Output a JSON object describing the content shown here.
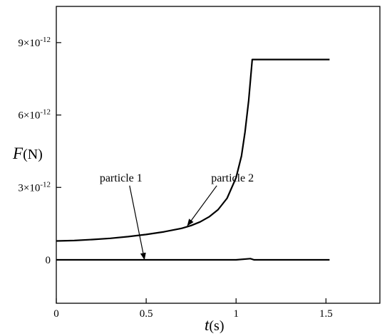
{
  "chart_data": {
    "type": "line",
    "title": "",
    "xlabel": {
      "var": "t",
      "unit": "(s)"
    },
    "ylabel": {
      "var": "F",
      "unit": "(N)"
    },
    "xlim": [
      0,
      1.8
    ],
    "ylim": [
      -1.8e-12,
      1.05e-11
    ],
    "x_ticks": [
      {
        "value": 0,
        "label": "0"
      },
      {
        "value": 0.5,
        "label": "0.5"
      },
      {
        "value": 1,
        "label": "1"
      },
      {
        "value": 1.5,
        "label": "1.5"
      }
    ],
    "y_ticks": [
      {
        "value": 0,
        "mantissa": "0",
        "exponent": ""
      },
      {
        "value": 3e-12,
        "mantissa": "3×10",
        "exponent": "-12"
      },
      {
        "value": 6e-12,
        "mantissa": "6×10",
        "exponent": "-12"
      },
      {
        "value": 9e-12,
        "mantissa": "9×10",
        "exponent": "-12"
      }
    ],
    "grid": false,
    "legend": "none",
    "series": [
      {
        "name": "particle 1",
        "x": [
          0,
          0.25,
          0.5,
          0.75,
          1.0,
          1.08,
          1.1,
          1.52
        ],
        "y": [
          0,
          0,
          0,
          0,
          0,
          5e-14,
          0,
          0
        ]
      },
      {
        "name": "particle 2",
        "x": [
          0,
          0.1,
          0.2,
          0.3,
          0.4,
          0.5,
          0.6,
          0.7,
          0.75,
          0.8,
          0.85,
          0.9,
          0.95,
          1.0,
          1.03,
          1.05,
          1.07,
          1.09,
          1.1,
          1.2,
          1.3,
          1.4,
          1.52
        ],
        "y": [
          7.8e-13,
          8e-13,
          8.4e-13,
          8.9e-13,
          9.6e-13,
          1.05e-12,
          1.16e-12,
          1.31e-12,
          1.42e-12,
          1.57e-12,
          1.78e-12,
          2.08e-12,
          2.55e-12,
          3.4e-12,
          4.3e-12,
          5.3e-12,
          6.6e-12,
          8.3e-12,
          8.3e-12,
          8.3e-12,
          8.3e-12,
          8.3e-12,
          8.3e-12
        ]
      }
    ],
    "annotations": [
      {
        "text": "particle 1",
        "points_to": "particle 1",
        "label_at": [
          0.36,
          3.25e-12
        ],
        "arrow_to": [
          0.49,
          2e-14
        ]
      },
      {
        "text": "particle 2",
        "points_to": "particle 2",
        "label_at": [
          0.98,
          3.25e-12
        ],
        "arrow_to": [
          0.73,
          1.42e-12
        ]
      }
    ]
  }
}
